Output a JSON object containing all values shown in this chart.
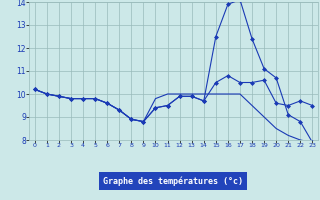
{
  "xlabel": "Graphe des températures (°c)",
  "hours": [
    0,
    1,
    2,
    3,
    4,
    5,
    6,
    7,
    8,
    9,
    10,
    11,
    12,
    13,
    14,
    15,
    16,
    17,
    18,
    19,
    20,
    21,
    22,
    23
  ],
  "line1": [
    10.2,
    10.0,
    9.9,
    9.8,
    9.8,
    9.8,
    9.6,
    9.3,
    8.9,
    8.8,
    9.4,
    9.5,
    9.9,
    9.9,
    9.7,
    10.5,
    10.8,
    10.5,
    10.5,
    10.6,
    9.6,
    9.5,
    9.7,
    9.5
  ],
  "line2": [
    10.2,
    10.0,
    9.9,
    9.8,
    9.8,
    9.8,
    9.6,
    9.3,
    8.9,
    8.8,
    9.4,
    9.5,
    9.9,
    9.9,
    9.7,
    12.5,
    13.9,
    14.1,
    12.4,
    11.1,
    10.7,
    9.1,
    8.8,
    7.9
  ],
  "line3": [
    10.2,
    10.0,
    9.9,
    9.8,
    9.8,
    9.8,
    9.6,
    9.3,
    8.9,
    8.8,
    9.8,
    10.0,
    10.0,
    10.0,
    10.0,
    10.0,
    10.0,
    10.0,
    9.5,
    9.0,
    8.5,
    8.2,
    8.0,
    7.9
  ],
  "line_color": "#1a3ab5",
  "bg_color": "#cce8e8",
  "grid_color": "#99bbbb",
  "label_bg": "#2244bb",
  "label_fg": "#ffffff",
  "ylim": [
    8,
    14
  ],
  "yticks": [
    8,
    9,
    10,
    11,
    12,
    13,
    14
  ],
  "xticks": [
    0,
    1,
    2,
    3,
    4,
    5,
    6,
    7,
    8,
    9,
    10,
    11,
    12,
    13,
    14,
    15,
    16,
    17,
    18,
    19,
    20,
    21,
    22,
    23
  ]
}
